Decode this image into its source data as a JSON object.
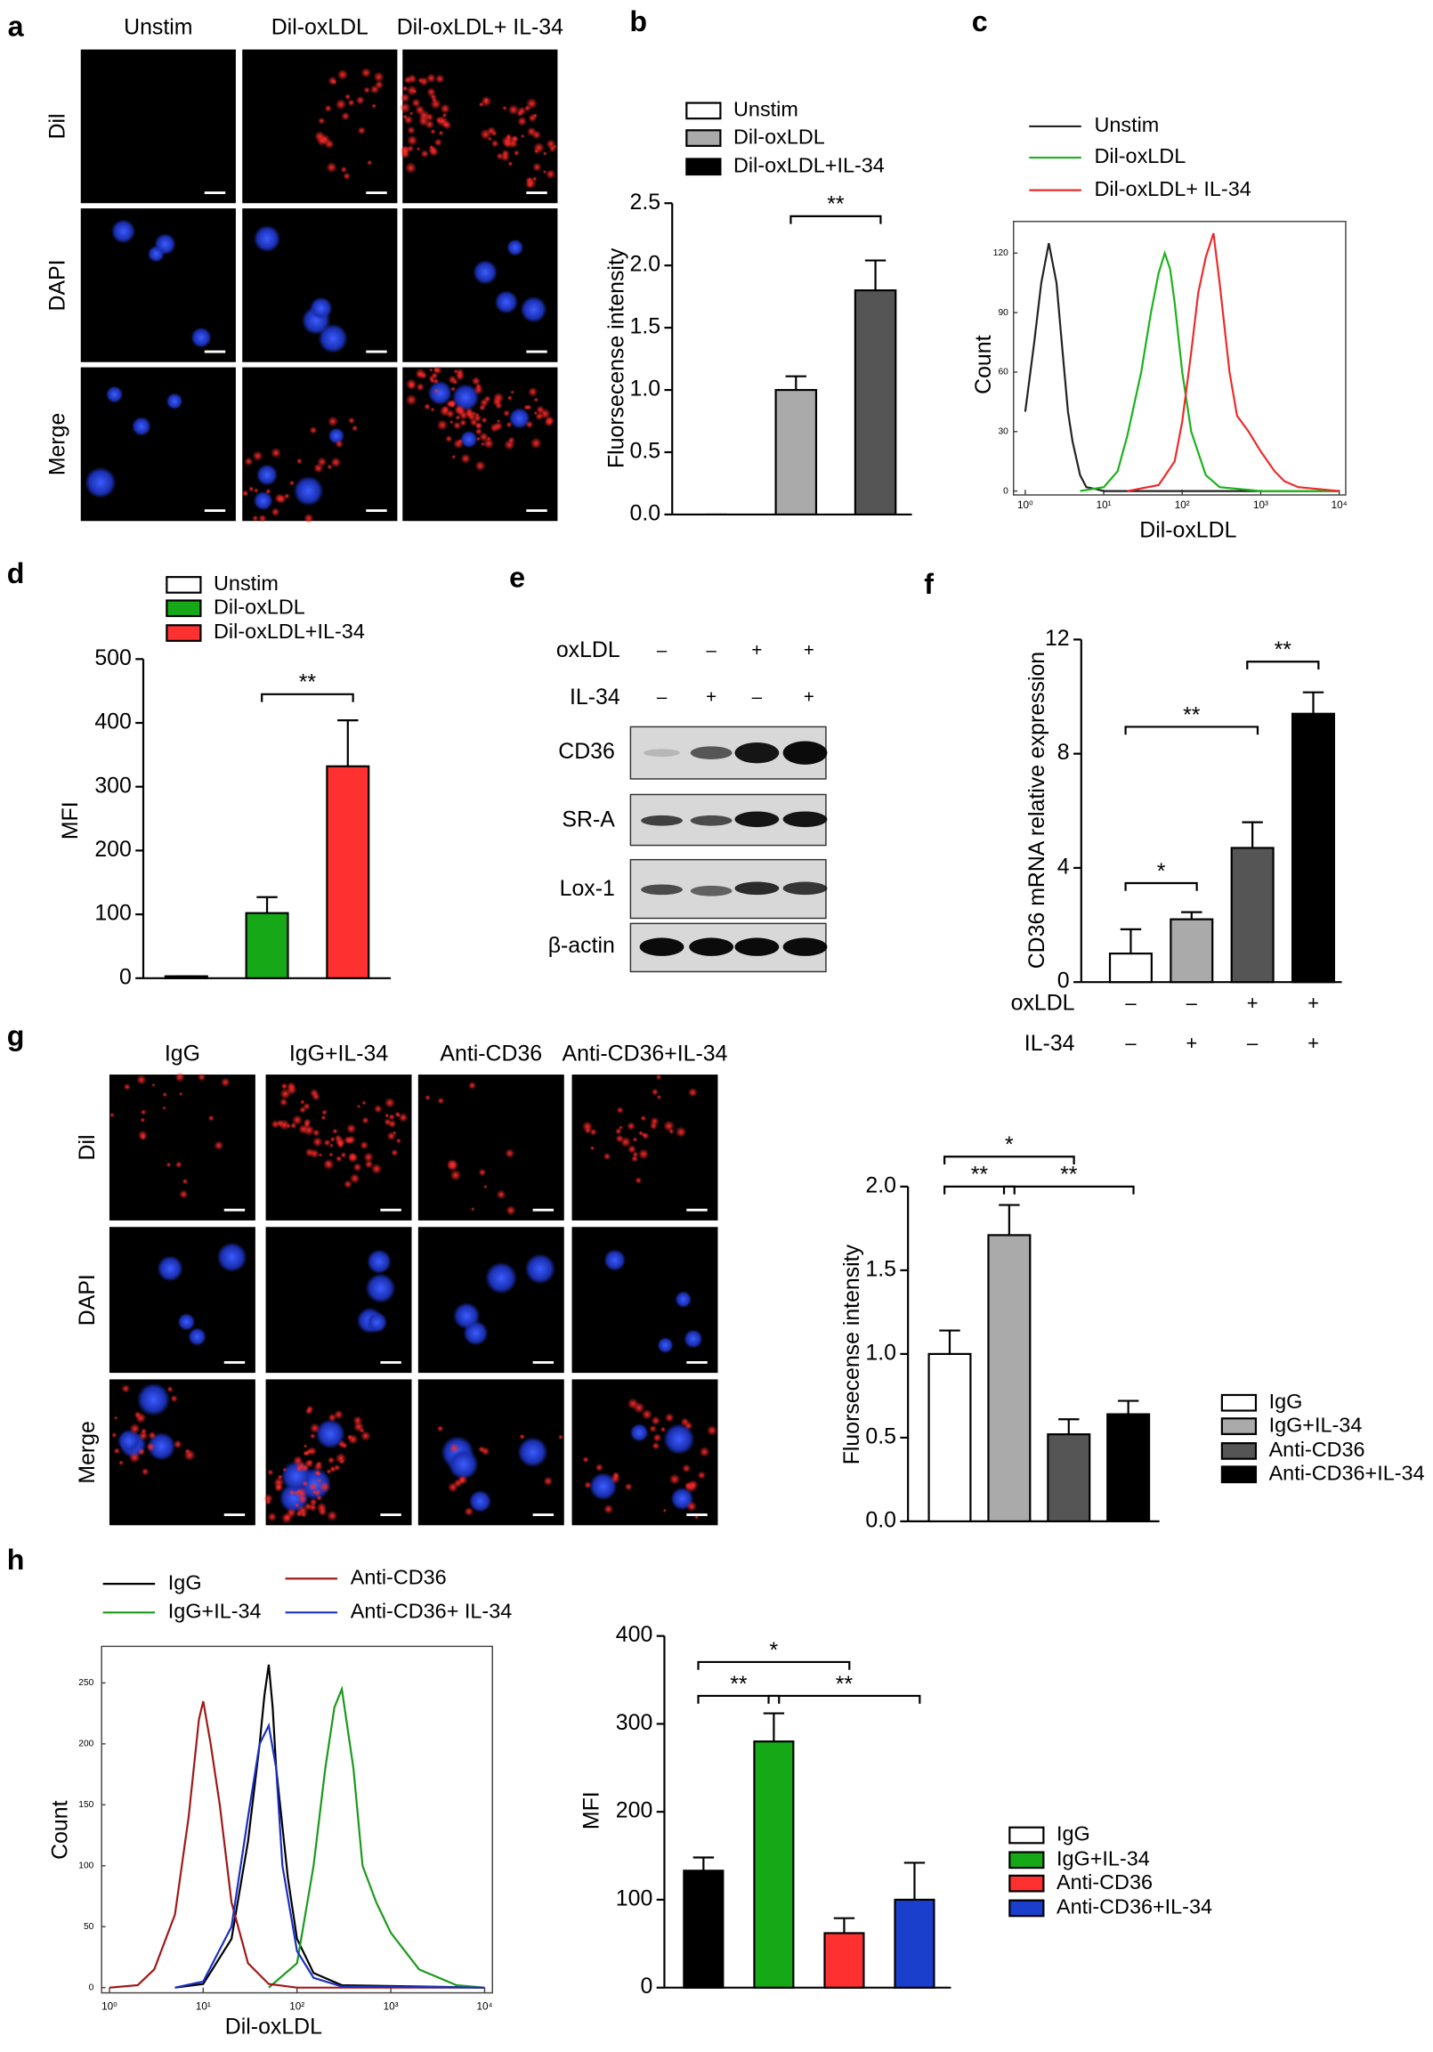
{
  "panel_labels": [
    "a",
    "b",
    "c",
    "d",
    "e",
    "f",
    "g",
    "h"
  ],
  "micrographs": [
    {
      "columns": [
        "Unstim",
        "Dil-oxLDL",
        "Dil-oxLDL+ IL-34"
      ],
      "rows": [
        "Dil",
        "DAPI",
        "Merge"
      ]
    },
    {
      "columns": [
        "IgG",
        "IgG+IL-34",
        "Anti-CD36",
        "Anti-CD36+IL-34"
      ],
      "rows": [
        "Dil",
        "DAPI",
        "Merge"
      ]
    }
  ],
  "blot": {
    "treatments": [
      {
        "label": "oxLDL",
        "signs": [
          "–",
          "–",
          "+",
          "+"
        ]
      },
      {
        "label": "IL-34",
        "signs": [
          "–",
          "+",
          "–",
          "+"
        ]
      }
    ],
    "proteins": [
      "CD36",
      "SR-A",
      "Lox-1",
      "β-actin"
    ]
  },
  "chart_data": [
    {
      "type": "bar",
      "ylabel": "Fluorsecense intensity",
      "categories": [
        "Unstim",
        "Dil-oxLDL",
        "Dil-oxLDL+IL-34"
      ],
      "values": [
        0,
        1.0,
        1.8
      ],
      "errors": [
        0,
        0.11,
        0.24
      ],
      "colors": [
        "#ffffff",
        "#aaaaaa",
        "#555555"
      ],
      "legend_colors": [
        "#ffffff",
        "#aaaaaa",
        "#000000"
      ],
      "ylim": [
        0,
        2.5
      ],
      "yticks": [
        {
          "value": 0,
          "label": "0.0"
        },
        0.5,
        {
          "value": 1,
          "label": "1.0"
        },
        1.5,
        {
          "value": 2,
          "label": "2.0"
        },
        2.5
      ],
      "significance": [
        {
          "label": "**",
          "between": [
            1,
            2
          ]
        }
      ]
    },
    {
      "type": "histogram_lines",
      "xlabel": "Dil-oxLDL",
      "ylabel": "Count",
      "log_x": true,
      "xlim": [
        1,
        10000
      ],
      "ylim": [
        0,
        136
      ],
      "xticks": [
        {
          "value": 1,
          "label": "10⁰"
        },
        {
          "value": 10,
          "label": "10¹"
        },
        {
          "value": 100,
          "label": "10²"
        },
        {
          "value": 1000,
          "label": "10³"
        },
        {
          "value": 10000,
          "label": "10⁴"
        }
      ],
      "yticks": [
        0,
        30,
        60,
        90,
        120
      ],
      "series": [
        {
          "name": "Unstim",
          "color": "#222222",
          "x": [
            1,
            1.3,
            1.6,
            2,
            2.5,
            3,
            3.5,
            4,
            5,
            6,
            8,
            10,
            15,
            30,
            100,
            1000,
            10000
          ],
          "values": [
            40,
            75,
            105,
            125,
            105,
            70,
            40,
            25,
            8,
            2,
            1,
            0,
            0,
            0,
            0,
            0,
            0
          ]
        },
        {
          "name": "Dil-oxLDL",
          "color": "#1bb31b",
          "x": [
            5,
            10,
            15,
            20,
            30,
            40,
            50,
            60,
            70,
            80,
            100,
            130,
            200,
            300,
            1000,
            10000
          ],
          "values": [
            0,
            2,
            10,
            28,
            60,
            90,
            110,
            120,
            112,
            95,
            60,
            30,
            8,
            2,
            0,
            0
          ]
        },
        {
          "name": "Dil-oxLDL+ IL-34",
          "color": "#ee2a2a",
          "x": [
            20,
            50,
            80,
            100,
            130,
            160,
            200,
            250,
            300,
            400,
            500,
            700,
            1000,
            1500,
            2000,
            3000,
            10000
          ],
          "values": [
            0,
            3,
            15,
            35,
            70,
            100,
            118,
            130,
            105,
            60,
            38,
            30,
            20,
            10,
            5,
            2,
            0
          ]
        }
      ]
    },
    {
      "type": "bar",
      "ylabel": "MFI",
      "categories": [
        "Unstim",
        "Dil-oxLDL",
        "Dil-oxLDL+IL-34"
      ],
      "values": [
        3,
        102,
        332
      ],
      "errors": [
        0,
        25,
        72
      ],
      "colors": [
        "#ffffff",
        "#17a817",
        "#ff3030"
      ],
      "legend_colors": [
        "#ffffff",
        "#17a817",
        "#ff3030"
      ],
      "ylim": [
        0,
        500
      ],
      "yticks": [
        0,
        100,
        200,
        300,
        400,
        500
      ],
      "significance": [
        {
          "label": "**",
          "between": [
            1,
            2
          ]
        }
      ]
    },
    {
      "type": "bar",
      "ylabel": "CD36 mRNA relative expression",
      "treatments": [
        {
          "label": "oxLDL",
          "signs": [
            "–",
            "–",
            "+",
            "+"
          ]
        },
        {
          "label": "IL-34",
          "signs": [
            "–",
            "+",
            "–",
            "+"
          ]
        }
      ],
      "values": [
        1.0,
        2.2,
        4.7,
        9.4
      ],
      "errors": [
        0.85,
        0.25,
        0.9,
        0.75
      ],
      "colors": [
        "#ffffff",
        "#aaaaaa",
        "#555555",
        "#000000"
      ],
      "ylim": [
        0,
        12
      ],
      "yticks": [
        0,
        4,
        8,
        12
      ],
      "significance": [
        {
          "label": "*",
          "between": [
            0,
            1
          ]
        },
        {
          "label": "**",
          "between": [
            0,
            2
          ]
        },
        {
          "label": "**",
          "between": [
            2,
            3
          ]
        }
      ]
    },
    {
      "type": "bar",
      "ylabel": "Fluorsecense intensity",
      "categories": [
        "IgG",
        "IgG+IL-34",
        "Anti-CD36",
        "Anti-CD36+IL-34"
      ],
      "values": [
        1.0,
        1.71,
        0.52,
        0.64
      ],
      "errors": [
        0.14,
        0.18,
        0.09,
        0.08
      ],
      "colors": [
        "#ffffff",
        "#aaaaaa",
        "#555555",
        "#000000"
      ],
      "legend_colors": [
        "#ffffff",
        "#aaaaaa",
        "#555555",
        "#000000"
      ],
      "ylim": [
        0,
        2
      ],
      "yticks": [
        {
          "value": 0,
          "label": "0.0"
        },
        0.5,
        {
          "value": 1,
          "label": "1.0"
        },
        1.5,
        {
          "value": 2,
          "label": "2.0"
        }
      ],
      "significance": [
        {
          "label": "**",
          "between": [
            0,
            1
          ]
        },
        {
          "label": "*",
          "between": [
            0,
            2
          ]
        },
        {
          "label": "**",
          "between": [
            1,
            3
          ]
        }
      ]
    },
    {
      "type": "histogram_lines",
      "xlabel": "Dil-oxLDL",
      "ylabel": "Count",
      "log_x": true,
      "xlim": [
        1,
        10000
      ],
      "ylim": [
        0,
        280
      ],
      "xticks": [
        {
          "value": 1,
          "label": "10⁰"
        },
        {
          "value": 10,
          "label": "10¹"
        },
        {
          "value": 100,
          "label": "10²"
        },
        {
          "value": 1000,
          "label": "10³"
        },
        {
          "value": 10000,
          "label": "10⁴"
        }
      ],
      "yticks": [
        0,
        50,
        100,
        150,
        200,
        250
      ],
      "series": [
        {
          "name": "IgG",
          "color": "#000000",
          "x": [
            5,
            10,
            20,
            30,
            40,
            45,
            50,
            55,
            60,
            80,
            100,
            150,
            300,
            10000
          ],
          "values": [
            0,
            3,
            40,
            120,
            200,
            240,
            265,
            230,
            180,
            90,
            40,
            12,
            2,
            0
          ]
        },
        {
          "name": "IgG+IL-34",
          "color": "#1a9a1a",
          "x": [
            50,
            100,
            150,
            200,
            250,
            300,
            400,
            500,
            700,
            1000,
            2000,
            5000,
            10000
          ],
          "values": [
            0,
            20,
            100,
            180,
            230,
            245,
            180,
            100,
            70,
            45,
            15,
            2,
            0
          ]
        },
        {
          "name": "Anti-CD36",
          "color": "#a01818",
          "x": [
            1,
            2,
            3,
            5,
            7,
            9,
            10,
            12,
            15,
            20,
            30,
            50,
            100,
            10000
          ],
          "values": [
            0,
            2,
            15,
            60,
            140,
            220,
            235,
            200,
            150,
            70,
            20,
            3,
            0,
            0
          ]
        },
        {
          "name": "Anti-CD36+ IL-34",
          "color": "#1a2fc0",
          "x": [
            5,
            10,
            20,
            30,
            40,
            50,
            60,
            70,
            100,
            150,
            300,
            10000
          ],
          "values": [
            0,
            5,
            50,
            140,
            200,
            215,
            180,
            100,
            30,
            8,
            1,
            0
          ]
        }
      ]
    },
    {
      "type": "bar",
      "ylabel": "MFI",
      "categories": [
        "IgG",
        "IgG+IL-34",
        "Anti-CD36",
        "Anti-CD36+IL-34"
      ],
      "values": [
        133,
        280,
        62,
        100
      ],
      "errors": [
        15,
        32,
        17,
        42
      ],
      "colors": [
        "#000000",
        "#17a817",
        "#ff3030",
        "#1a3fcc"
      ],
      "legend_colors": [
        "#ffffff",
        "#17a817",
        "#ff3030",
        "#1a3fcc"
      ],
      "ylim": [
        0,
        400
      ],
      "yticks": [
        0,
        100,
        200,
        300,
        400
      ],
      "significance": [
        {
          "label": "**",
          "between": [
            0,
            1
          ]
        },
        {
          "label": "*",
          "between": [
            0,
            2
          ]
        },
        {
          "label": "**",
          "between": [
            1,
            3
          ]
        }
      ]
    }
  ]
}
